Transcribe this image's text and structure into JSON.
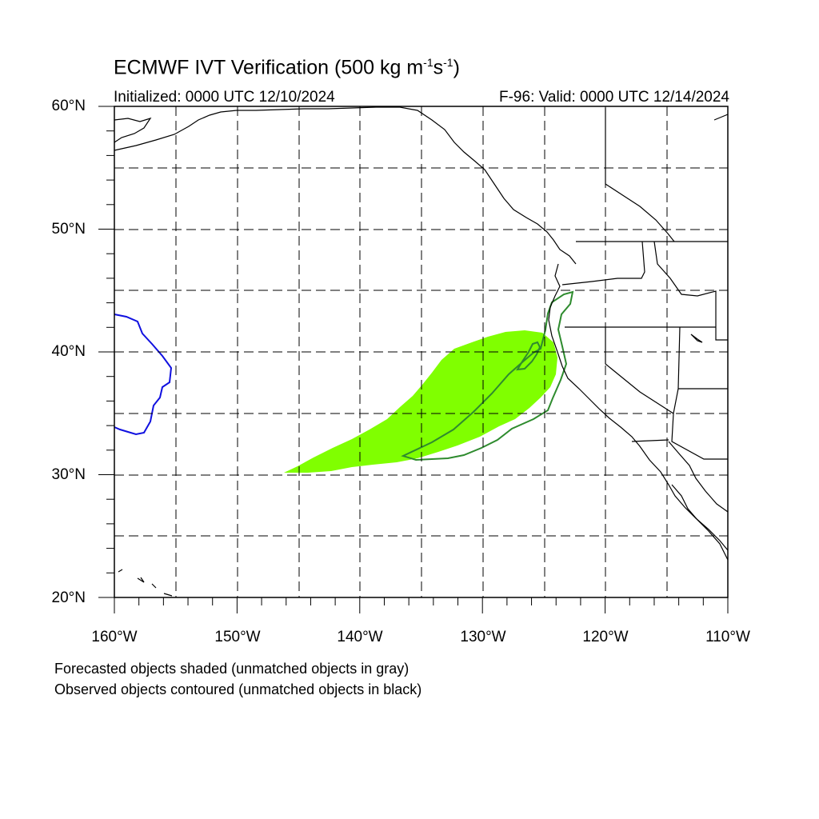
{
  "title": {
    "main": "ECMWF IVT Verification (500 kg m",
    "exp1": "-1",
    "mid": "s",
    "exp2": "-1",
    "end": ")"
  },
  "initialized": "Initialized: 0000 UTC 12/10/2024",
  "valid": "F-96: Valid: 0000 UTC 12/14/2024",
  "lat_labels": [
    "60°N",
    "50°N",
    "40°N",
    "30°N",
    "20°N"
  ],
  "lon_labels": [
    "160°W",
    "150°W",
    "140°W",
    "130°W",
    "120°W",
    "110°W"
  ],
  "captions": [
    "Forecasted objects shaded (unmatched objects in gray)",
    "Observed objects contoured (unmatched objects in black)"
  ],
  "map": {
    "extent": {
      "lon_min": -160,
      "lon_max": -110,
      "lat_min": 20,
      "lat_max": 60
    },
    "grid_line_style": "dashed",
    "forecast_object_color": "#80ff00",
    "matched_observed_contour_color": "#2e8b2e",
    "unmatched_object_contour_color": "#1010e0",
    "coastline_color": "#000000"
  }
}
